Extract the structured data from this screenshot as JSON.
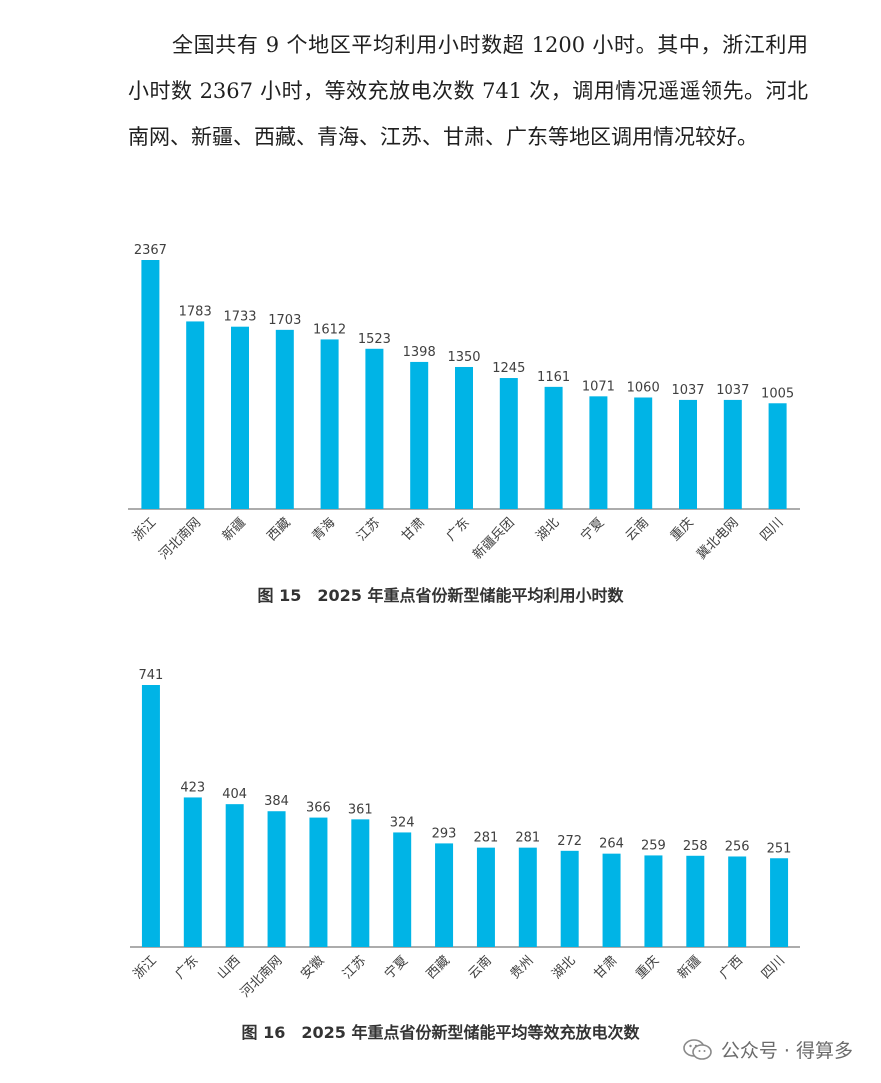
{
  "paragraph": "全国共有 9 个地区平均利用小时数超 1200 小时。其中，浙江利用小时数 2367 小时，等效充放电次数 741 次，调用情况遥遥领先。河北南网、新疆、西藏、青海、江苏、甘肃、广东等地区调用情况较好。",
  "chart_data": [
    {
      "type": "bar",
      "title": "图 15　2025 年重点省份新型储能平均利用小时数",
      "categories": [
        "浙江",
        "河北南网",
        "新疆",
        "西藏",
        "青海",
        "江苏",
        "甘肃",
        "广东",
        "新疆兵团",
        "湖北",
        "宁夏",
        "云南",
        "重庆",
        "冀北电网",
        "四川"
      ],
      "values": [
        2367,
        1783,
        1733,
        1703,
        1612,
        1523,
        1398,
        1350,
        1245,
        1161,
        1071,
        1060,
        1037,
        1037,
        1005
      ],
      "xlabel": "",
      "ylabel": "",
      "ylim": [
        0,
        2367
      ],
      "grid": false,
      "legend": "none",
      "bar_color": "#00b4e6"
    },
    {
      "type": "bar",
      "title": "图 16　2025 年重点省份新型储能平均等效充放电次数",
      "categories": [
        "浙江",
        "广东",
        "山西",
        "河北南网",
        "安徽",
        "江苏",
        "宁夏",
        "西藏",
        "云南",
        "贵州",
        "湖北",
        "甘肃",
        "重庆",
        "新疆",
        "广西",
        "四川"
      ],
      "values": [
        741,
        423,
        404,
        384,
        366,
        361,
        324,
        293,
        281,
        281,
        272,
        264,
        259,
        258,
        256,
        251
      ],
      "xlabel": "",
      "ylabel": "",
      "ylim": [
        0,
        741
      ],
      "grid": false,
      "legend": "none",
      "bar_color": "#00b4e6"
    }
  ],
  "watermark": {
    "icon": "wechat-icon",
    "text": "公众号 · 得算多"
  }
}
